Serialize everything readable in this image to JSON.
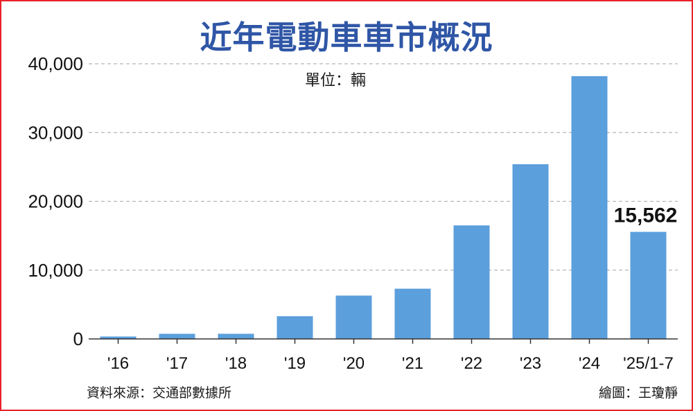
{
  "title": "近年電動車車市概況",
  "unit_label": "單位：輛",
  "source": "資料來源：交通部數據所",
  "credit": "繪圖：王瓊靜",
  "colors": {
    "bar": "#5b9fdc",
    "title": "#2f56a6",
    "border": "#e8202a",
    "grid": "#b5b5b5"
  },
  "chart_data": {
    "type": "bar",
    "categories": [
      "'16",
      "'17",
      "'18",
      "'19",
      "'20",
      "'21",
      "'22",
      "'23",
      "'24",
      "'25/1-7"
    ],
    "values": [
      350,
      750,
      750,
      3300,
      6300,
      7300,
      16500,
      25400,
      38200,
      15562
    ],
    "ylim": [
      0,
      40000
    ],
    "yticks": [
      0,
      10000,
      20000,
      30000,
      40000
    ],
    "ytick_labels": [
      "0",
      "10,000",
      "20,000",
      "30,000",
      "40,000"
    ],
    "data_labels": [
      {
        "category": "'25/1-7",
        "text": "15,562"
      }
    ],
    "grid": true
  }
}
